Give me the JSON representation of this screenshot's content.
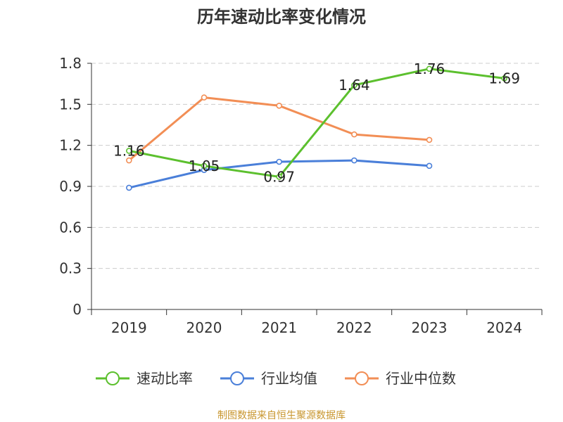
{
  "chart_data": {
    "type": "line",
    "title": "历年速动比率变化情况",
    "categories": [
      "2019",
      "2020",
      "2021",
      "2022",
      "2023",
      "2024"
    ],
    "ylim": [
      0,
      1.8
    ],
    "yticks": [
      "0",
      "0.3",
      "0.6",
      "0.9",
      "1.2",
      "1.5",
      "1.8"
    ],
    "grid": true,
    "legend_position": "bottom",
    "series": [
      {
        "name": "速动比率",
        "color": "#5cc02e",
        "values": [
          1.16,
          1.05,
          0.97,
          1.64,
          1.76,
          1.69
        ],
        "labels": [
          "1.16",
          "1.05",
          "0.97",
          "1.64",
          "1.76",
          "1.69"
        ],
        "label_indices": [
          0,
          1,
          2,
          3,
          4,
          5
        ]
      },
      {
        "name": "行业均值",
        "color": "#4a7fd9",
        "values": [
          0.89,
          1.02,
          1.08,
          1.09,
          1.05,
          null
        ]
      },
      {
        "name": "行业中位数",
        "color": "#f28e55",
        "values": [
          1.09,
          1.55,
          1.49,
          1.28,
          1.24,
          null
        ]
      }
    ],
    "source": "制图数据来自恒生聚源数据库"
  }
}
